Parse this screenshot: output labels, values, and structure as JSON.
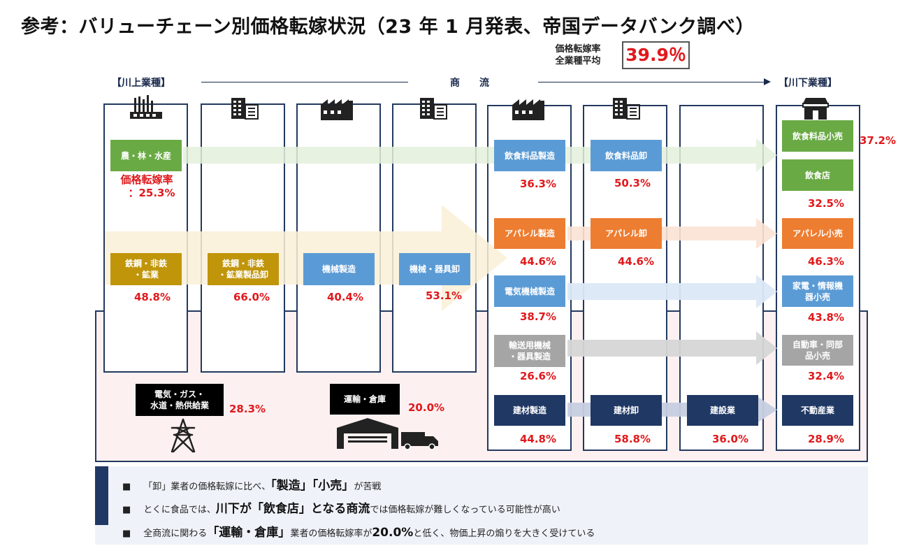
{
  "title": "参考：バリューチェーン別価格転嫁状況（23 年 1 月発表、帝国データバンク調べ）",
  "average": {
    "label_line1": "価格転嫁率",
    "label_line2": "全業種平均",
    "value": "39.9％"
  },
  "flow": {
    "upstream": "【川上業種】",
    "middle": "商　　流",
    "downstream": "【川下業種】"
  },
  "industries": {
    "agri": {
      "label": "農・林・水産",
      "rate_line1": "価格転嫁率",
      "rate_line2": "：25.3%"
    },
    "steel_mfg": {
      "line1": "鉄鋼・非鉄",
      "line2": "・鉱業",
      "rate": "48.8%"
    },
    "steel_whs": {
      "line1": "鉄鋼・非鉄",
      "line2": "・鉱業製品卸",
      "rate": "66.0%"
    },
    "machine_mfg": {
      "label": "機械製造",
      "rate": "40.4%"
    },
    "machine_whs": {
      "label": "機械・器具卸",
      "rate": "53.1%"
    },
    "food_mfg": {
      "label": "飲食料品製造",
      "rate": "36.3%"
    },
    "food_whs": {
      "label": "飲食料品卸",
      "rate": "50.3%"
    },
    "food_retail": {
      "label": "飲食料品小売",
      "rate": "37.2%"
    },
    "restaurant": {
      "label": "飲食店",
      "rate": "32.5%"
    },
    "apparel_mfg": {
      "label": "アパレル製造",
      "rate": "44.6%"
    },
    "apparel_whs": {
      "label": "アパレル卸",
      "rate": "44.6%"
    },
    "apparel_retail": {
      "label": "アパレル小売",
      "rate": "46.3%"
    },
    "elec_mfg": {
      "label": "電気機械製造",
      "rate": "38.7%"
    },
    "elec_retail": {
      "line1": "家電・情報機",
      "line2": "器小売",
      "rate": "43.8%"
    },
    "transport_mfg": {
      "line1": "輸送用機械",
      "line2": "・器具製造",
      "rate": "26.6%"
    },
    "auto_retail": {
      "line1": "自動車・同部",
      "line2": "品小売",
      "rate": "32.4%"
    },
    "building_mfg": {
      "label": "建材製造",
      "rate": "44.8%"
    },
    "building_whs": {
      "label": "建材卸",
      "rate": "58.8%"
    },
    "construction": {
      "label": "建設業",
      "rate": "36.0%"
    },
    "realestate": {
      "label": "不動産業",
      "rate": "28.9%"
    },
    "utilities": {
      "line1": "電気・ガス・",
      "line2": "水道・熱供給業",
      "rate": "28.3%"
    },
    "logistics": {
      "label": "運輸・倉庫",
      "rate": "20.0%"
    }
  },
  "notes": [
    {
      "bullet": "■",
      "p1": "「卸」業者の価格転嫁に比べ、",
      "b1": "「製造」「小売」",
      "p2": "が苦戦"
    },
    {
      "bullet": "■",
      "p1": "とくに食品では、",
      "b1": "川下が「飲食店」となる商流",
      "p2": "では価格転嫁が難しくなっている可能性が高い"
    },
    {
      "bullet": "■",
      "p1": "全商流に関わる",
      "b1": "「運輸・倉庫」",
      "p2": "業者の価格転嫁率が",
      "b2": "20.0%",
      "p3": "と低く、物価上昇の煽りを大きく受けている"
    }
  ],
  "colors": {
    "green": "#6aaa45",
    "gold": "#c0950a",
    "blue": "#5b9bd5",
    "orange": "#ed7d31",
    "gray": "#a5a5a5",
    "navy": "#203864",
    "red": "#e0191c"
  }
}
